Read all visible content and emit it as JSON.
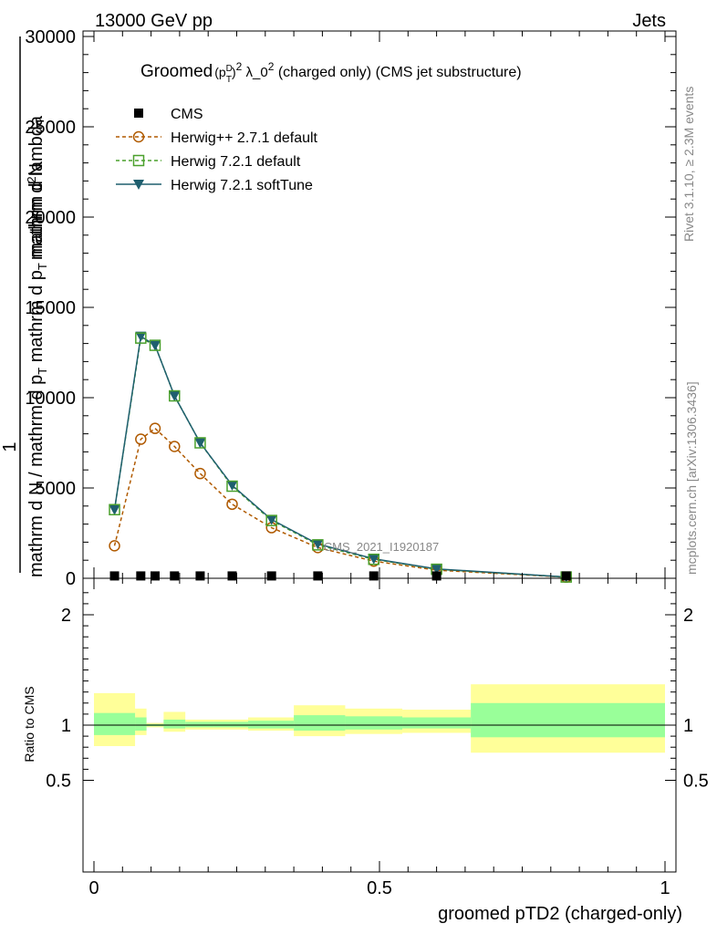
{
  "header": {
    "left": "13000 GeV pp",
    "right": "Jets"
  },
  "side_labels": {
    "rivet": "Rivet 3.1.10, ≥ 2.3M events",
    "mcplots": "mcplots.cern.ch [arXiv:1306.3436]"
  },
  "title_parts": {
    "prefix": "Groomed",
    "p": "(p",
    "sup_d": "D",
    "sub_t": "T",
    "close": ")",
    "sup2": "2",
    "lambda": " λ_0",
    "sup2b": "2",
    "rest": "  (charged only) (CMS jet substructure)"
  },
  "watermark": "CMS_2021_I1920187",
  "ylabel_main": {
    "frac_top": "1",
    "line1": "mathrm d N / mathrm d p",
    "line1_sub": "T",
    "line1_end": " mathrm d p",
    "line1_sub2": "T",
    "line1_tail": " mathrm d lambda",
    "frac_top2": "mathrm d",
    "frac_top2_sup": "2",
    "frac_top2_end": "N"
  },
  "ylabel_ratio": "Ratio to CMS",
  "xlabel": "groomed pTD2 (charged-only)",
  "colors": {
    "cms": "#000000",
    "herwigpp": "#b05a00",
    "herwig_default": "#4aa02c",
    "herwig_soft": "#1f5f6f",
    "band_inner": "#99ff99",
    "band_outer": "#ffff99"
  },
  "chart_data": [
    {
      "type": "line",
      "panel": "main",
      "ylim": [
        0,
        30000
      ],
      "xlim": [
        0,
        1
      ],
      "yticks": [
        "0",
        "5000",
        "10000",
        "15000",
        "20000",
        "25000",
        "30000"
      ],
      "x": [
        0.036,
        0.082,
        0.107,
        0.141,
        0.186,
        0.242,
        0.311,
        0.392,
        0.49,
        0.6,
        0.827
      ],
      "series": [
        {
          "name": "CMS",
          "marker": "square",
          "values": [
            130,
            130,
            130,
            130,
            130,
            130,
            130,
            130,
            130,
            130,
            130
          ]
        },
        {
          "name": "Herwig++ 2.7.1 default",
          "marker": "circle",
          "values": [
            1800,
            7700,
            8300,
            7300,
            5800,
            4100,
            2800,
            1700,
            950,
            450,
            60
          ]
        },
        {
          "name": "Herwig 7.2.1 default",
          "marker": "square-open",
          "values": [
            3800,
            13300,
            12900,
            10100,
            7500,
            5100,
            3200,
            1850,
            1050,
            500,
            70
          ]
        },
        {
          "name": "Herwig 7.2.1 softTune",
          "marker": "triangle-down",
          "values": [
            3800,
            13400,
            12900,
            10100,
            7500,
            5150,
            3250,
            1900,
            1080,
            520,
            70
          ]
        }
      ]
    },
    {
      "type": "area",
      "panel": "ratio",
      "ylim": [
        0.4,
        2.3
      ],
      "xlim": [
        0,
        1
      ],
      "yticks": [
        "0.5",
        "1",
        "2"
      ],
      "xticks": [
        "0",
        "0.5",
        "1"
      ],
      "reference": 1,
      "bins": [
        {
          "x0": 0.0,
          "x1": 0.072,
          "inner": [
            0.91,
            1.11
          ],
          "outer": [
            0.81,
            1.29
          ]
        },
        {
          "x0": 0.072,
          "x1": 0.092,
          "inner": [
            0.95,
            1.07
          ],
          "outer": [
            0.91,
            1.15
          ]
        },
        {
          "x0": 0.092,
          "x1": 0.122,
          "inner": [
            0.99,
            1.01
          ],
          "outer": [
            0.98,
            1.02
          ]
        },
        {
          "x0": 0.122,
          "x1": 0.16,
          "inner": [
            0.97,
            1.05
          ],
          "outer": [
            0.94,
            1.12
          ]
        },
        {
          "x0": 0.16,
          "x1": 0.21,
          "inner": [
            0.98,
            1.03
          ],
          "outer": [
            0.96,
            1.05
          ]
        },
        {
          "x0": 0.21,
          "x1": 0.27,
          "inner": [
            0.98,
            1.03
          ],
          "outer": [
            0.96,
            1.05
          ]
        },
        {
          "x0": 0.27,
          "x1": 0.35,
          "inner": [
            0.97,
            1.04
          ],
          "outer": [
            0.95,
            1.07
          ]
        },
        {
          "x0": 0.35,
          "x1": 0.44,
          "inner": [
            0.95,
            1.09
          ],
          "outer": [
            0.9,
            1.18
          ]
        },
        {
          "x0": 0.44,
          "x1": 0.54,
          "inner": [
            0.96,
            1.08
          ],
          "outer": [
            0.92,
            1.15
          ]
        },
        {
          "x0": 0.54,
          "x1": 0.66,
          "inner": [
            0.97,
            1.07
          ],
          "outer": [
            0.93,
            1.14
          ]
        },
        {
          "x0": 0.66,
          "x1": 1.0,
          "inner": [
            0.89,
            1.2
          ],
          "outer": [
            0.75,
            1.37
          ]
        }
      ]
    }
  ]
}
